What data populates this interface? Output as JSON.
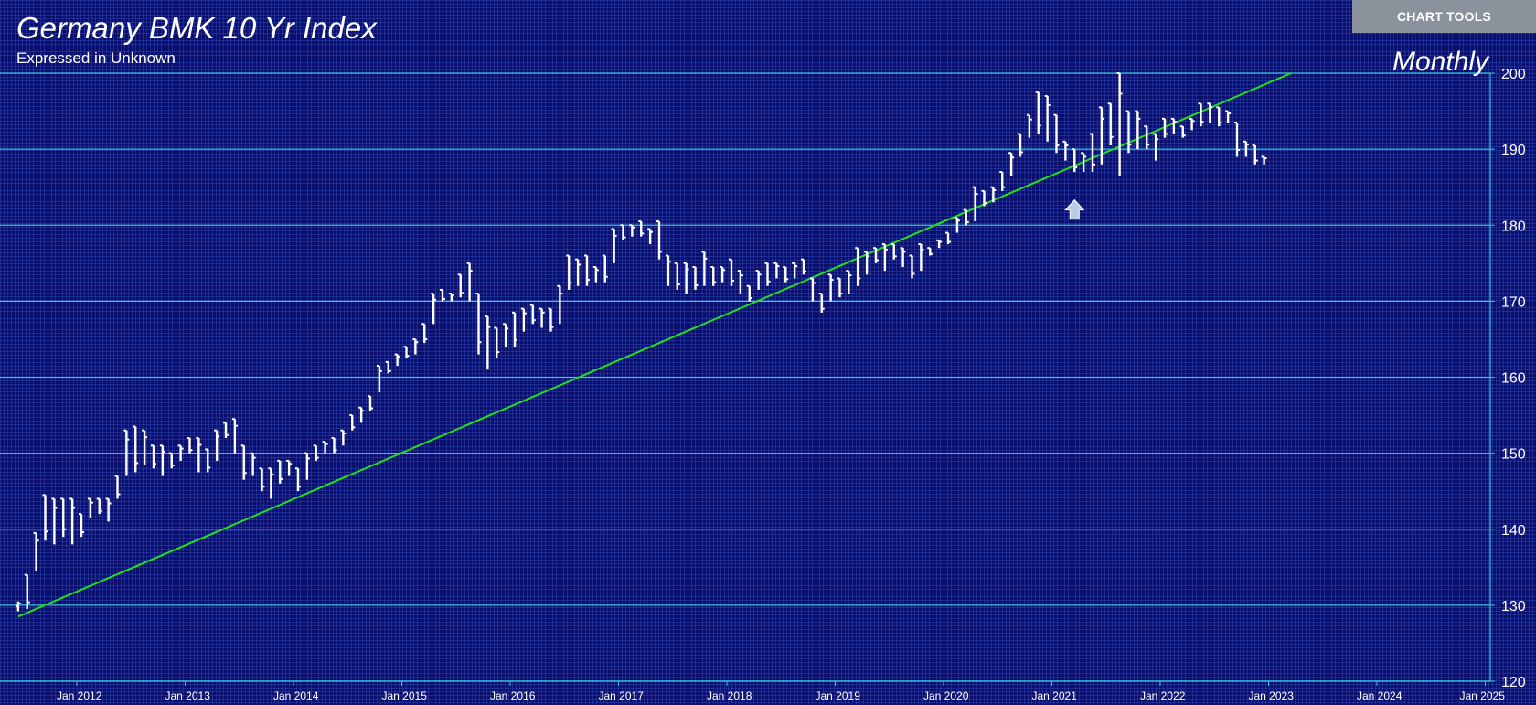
{
  "header": {
    "title": "Germany BMK 10 Yr Index",
    "subtitle": "Expressed in Unknown",
    "period": "Monthly",
    "tools_label": "CHART TOOLS"
  },
  "colors": {
    "background": "#0a0f6e",
    "gridline": "#39c3d9",
    "bars": "#ffffff",
    "trendline": "#22dd22",
    "arrow": "#b8cce6"
  },
  "icons": {
    "marker": "up-arrow-icon"
  },
  "chart_data": {
    "type": "ohlc",
    "frequency": "monthly",
    "ylim": [
      120,
      200
    ],
    "y_ticks": [
      "200",
      "190",
      "180",
      "170",
      "160",
      "150",
      "140",
      "130",
      "120"
    ],
    "x_ticks": [
      "Jan 2012",
      "Jan 2013",
      "Jan 2014",
      "Jan 2015",
      "Jan 2016",
      "Jan 2017",
      "Jan 2018",
      "Jan 2019",
      "Jan 2020",
      "Jan 2021",
      "Jan 2022",
      "Jan 2023",
      "Jan 2024",
      "Jan 2025"
    ],
    "x_start": "2011-06",
    "bars": [
      [
        130.5,
        129.2
      ],
      [
        134.0,
        129.5
      ],
      [
        139.5,
        134.5
      ],
      [
        144.5,
        138.5
      ],
      [
        144.0,
        138.0
      ],
      [
        144.0,
        139.0
      ],
      [
        144.0,
        138.0
      ],
      [
        142.0,
        139.0
      ],
      [
        144.0,
        141.5
      ],
      [
        144.0,
        142.0
      ],
      [
        144.0,
        141.0
      ],
      [
        147.0,
        144.0
      ],
      [
        153.0,
        147.0
      ],
      [
        153.5,
        147.5
      ],
      [
        153.0,
        148.5
      ],
      [
        151.0,
        148.0
      ],
      [
        151.0,
        147.0
      ],
      [
        150.0,
        148.0
      ],
      [
        151.0,
        149.0
      ],
      [
        152.0,
        150.0
      ],
      [
        152.0,
        147.5
      ],
      [
        150.5,
        147.5
      ],
      [
        153.0,
        149.0
      ],
      [
        154.0,
        152.0
      ],
      [
        154.5,
        150.0
      ],
      [
        151.0,
        146.5
      ],
      [
        150.0,
        147.0
      ],
      [
        148.0,
        145.0
      ],
      [
        148.0,
        144.0
      ],
      [
        149.0,
        146.0
      ],
      [
        149.0,
        147.0
      ],
      [
        148.0,
        145.0
      ],
      [
        150.0,
        146.5
      ],
      [
        151.0,
        149.0
      ],
      [
        151.5,
        150.0
      ],
      [
        152.0,
        150.0
      ],
      [
        153.0,
        151.0
      ],
      [
        155.0,
        153.0
      ],
      [
        156.0,
        154.0
      ],
      [
        157.5,
        155.5
      ],
      [
        161.5,
        158.0
      ],
      [
        162.0,
        160.5
      ],
      [
        163.0,
        161.5
      ],
      [
        164.0,
        162.5
      ],
      [
        165.0,
        163.0
      ],
      [
        167.0,
        164.5
      ],
      [
        171.0,
        167.0
      ],
      [
        171.5,
        170.0
      ],
      [
        171.0,
        170.0
      ],
      [
        173.5,
        170.5
      ],
      [
        175.0,
        170.0
      ],
      [
        171.0,
        163.0
      ],
      [
        168.0,
        161.0
      ],
      [
        166.5,
        162.5
      ],
      [
        167.0,
        164.0
      ],
      [
        168.5,
        164.0
      ],
      [
        169.0,
        166.0
      ],
      [
        169.5,
        167.0
      ],
      [
        169.0,
        166.5
      ],
      [
        169.0,
        166.0
      ],
      [
        172.0,
        167.0
      ],
      [
        176.0,
        171.5
      ],
      [
        175.5,
        172.0
      ],
      [
        176.0,
        172.0
      ],
      [
        174.5,
        172.5
      ],
      [
        176.0,
        172.5
      ],
      [
        179.5,
        175.0
      ],
      [
        180.0,
        178.0
      ],
      [
        180.0,
        178.5
      ],
      [
        180.5,
        178.5
      ],
      [
        179.5,
        177.5
      ],
      [
        180.5,
        175.5
      ],
      [
        176.0,
        172.0
      ],
      [
        175.0,
        171.5
      ],
      [
        175.0,
        171.0
      ],
      [
        174.5,
        171.5
      ],
      [
        176.5,
        172.0
      ],
      [
        174.5,
        172.0
      ],
      [
        174.5,
        172.5
      ],
      [
        175.5,
        172.0
      ],
      [
        174.0,
        171.0
      ],
      [
        172.0,
        170.0
      ],
      [
        174.0,
        171.5
      ],
      [
        175.0,
        172.0
      ],
      [
        175.0,
        173.0
      ],
      [
        174.5,
        172.5
      ],
      [
        175.0,
        173.0
      ],
      [
        175.5,
        173.5
      ],
      [
        173.0,
        170.0
      ],
      [
        171.0,
        168.5
      ],
      [
        173.5,
        170.0
      ],
      [
        173.0,
        170.5
      ],
      [
        174.0,
        171.0
      ],
      [
        177.0,
        172.0
      ],
      [
        176.5,
        173.5
      ],
      [
        177.0,
        175.0
      ],
      [
        177.5,
        174.0
      ],
      [
        177.5,
        175.5
      ],
      [
        177.0,
        174.5
      ],
      [
        176.0,
        173.0
      ],
      [
        177.5,
        174.0
      ],
      [
        177.0,
        176.0
      ],
      [
        178.0,
        177.0
      ],
      [
        179.0,
        177.5
      ],
      [
        181.0,
        179.0
      ],
      [
        182.0,
        180.0
      ],
      [
        185.0,
        180.5
      ],
      [
        184.5,
        182.5
      ],
      [
        185.0,
        183.0
      ],
      [
        187.0,
        184.5
      ],
      [
        189.5,
        186.5
      ],
      [
        192.0,
        189.0
      ],
      [
        194.5,
        191.5
      ],
      [
        197.5,
        192.0
      ],
      [
        197.0,
        191.0
      ],
      [
        194.5,
        189.5
      ],
      [
        191.0,
        188.5
      ],
      [
        190.0,
        187.0
      ],
      [
        189.5,
        187.0
      ],
      [
        192.0,
        187.0
      ],
      [
        195.5,
        188.0
      ],
      [
        196.0,
        190.5
      ],
      [
        200.0,
        186.5
      ],
      [
        195.0,
        189.5
      ],
      [
        195.0,
        190.0
      ],
      [
        193.0,
        190.0
      ],
      [
        192.0,
        188.5
      ],
      [
        194.0,
        191.5
      ],
      [
        194.0,
        192.0
      ],
      [
        193.0,
        191.5
      ],
      [
        194.0,
        192.5
      ],
      [
        196.0,
        193.0
      ],
      [
        196.0,
        193.5
      ],
      [
        195.5,
        193.0
      ],
      [
        195.0,
        193.5
      ],
      [
        193.5,
        189.0
      ],
      [
        191.0,
        189.0
      ],
      [
        190.5,
        188.0
      ],
      [
        189.0,
        188.0
      ]
    ],
    "trendline": {
      "from": [
        "2011-06",
        128.5
      ],
      "to": [
        "2023-03",
        200.0
      ]
    },
    "marker": {
      "type": "up-arrow",
      "date": "2021-03",
      "value": 182.0
    },
    "grid": "horizontal",
    "y_axis": "right"
  }
}
